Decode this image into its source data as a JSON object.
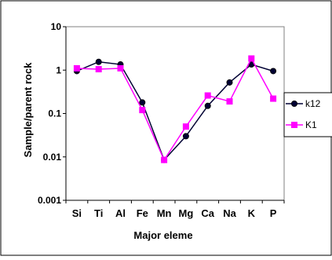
{
  "chart_data": {
    "type": "line",
    "xlabel": "Major eleme",
    "ylabel": "Sample/parent rock",
    "yscale": "log",
    "ylim": [
      0.001,
      10
    ],
    "y_tick_labels": [
      "10",
      "1",
      "0.1",
      "0.01",
      "0.001"
    ],
    "y_tick_values": [
      10,
      1,
      0.1,
      0.01,
      0.001
    ],
    "categories": [
      "Si",
      "Ti",
      "Al",
      "Fe",
      "Mn",
      "Mg",
      "Ca",
      "Na",
      "K",
      "P"
    ],
    "grid": false,
    "legend_position": "right",
    "series": [
      {
        "name": "k12",
        "color": "#000033",
        "marker": "circle",
        "values": [
          0.95,
          1.55,
          1.35,
          0.18,
          0.0085,
          0.03,
          0.15,
          0.52,
          1.35,
          0.95
        ]
      },
      {
        "name": "K1",
        "color": "#ff00ff",
        "marker": "square",
        "values": [
          1.1,
          1.05,
          1.1,
          0.12,
          0.0085,
          0.05,
          0.26,
          0.19,
          1.85,
          0.22
        ]
      }
    ]
  }
}
